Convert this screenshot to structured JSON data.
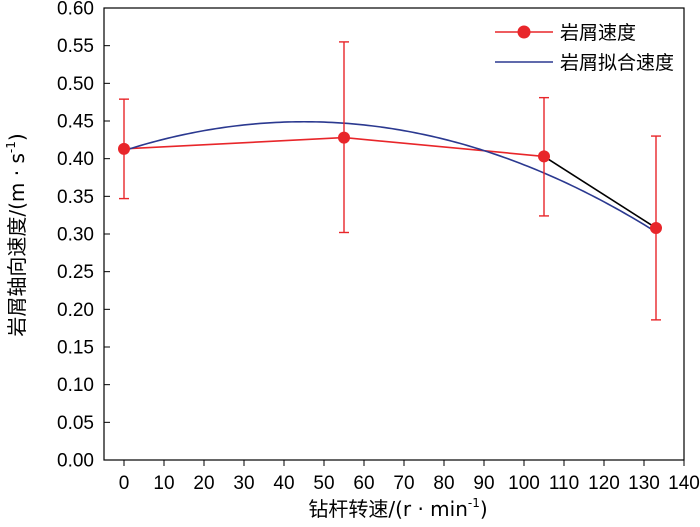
{
  "chart_data": {
    "type": "line",
    "xlabel": "钻杆转速/(r · min",
    "xlabel_sup": "-1",
    "xlabel_tail": ")",
    "ylabel": "岩屑轴向速度/(m · s",
    "ylabel_sup": "-1",
    "ylabel_tail": ")",
    "xlim": [
      -5,
      140
    ],
    "ylim": [
      0,
      0.6
    ],
    "x_ticks": [
      "0",
      "10",
      "20",
      "30",
      "40",
      "50",
      "60",
      "70",
      "80",
      "90",
      "100",
      "110",
      "120",
      "130",
      "140"
    ],
    "y_ticks": [
      "0.00",
      "0.05",
      "0.10",
      "0.15",
      "0.20",
      "0.25",
      "0.30",
      "0.35",
      "0.40",
      "0.45",
      "0.50",
      "0.55",
      "0.60"
    ],
    "legend_position": "top-right",
    "colors": {
      "measured": "#e8262a",
      "fit": "#2b3990",
      "connector": "#000000"
    },
    "series": [
      {
        "name": "岩屑速度",
        "x": [
          0,
          55,
          105,
          133
        ],
        "y": [
          0.413,
          0.428,
          0.403,
          0.308
        ],
        "err_high": [
          0.479,
          0.555,
          0.481,
          0.43
        ],
        "err_low": [
          0.347,
          0.302,
          0.324,
          0.186
        ]
      },
      {
        "name": "岩屑拟合速度",
        "fit": {
          "vertex_x": 45,
          "vertex_y": 0.449,
          "a": -1.89e-05
        },
        "x_range": [
          0,
          133
        ]
      }
    ]
  }
}
